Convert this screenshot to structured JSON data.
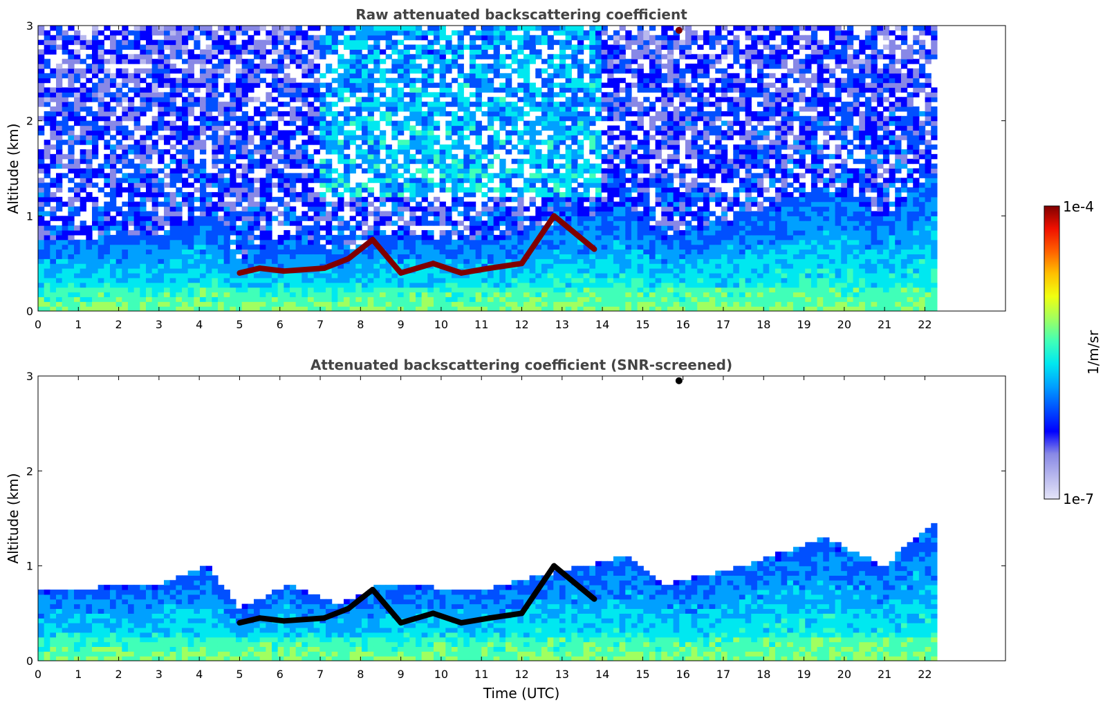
{
  "chart_data": [
    {
      "type": "heatmap",
      "title": "Raw attenuated backscattering coefficient",
      "xlabel": "",
      "ylabel": "Altitude (km)",
      "xlim": [
        0,
        24
      ],
      "ylim": [
        0,
        3
      ],
      "x_ticks": [
        "0",
        "1",
        "2",
        "3",
        "4",
        "5",
        "6",
        "7",
        "8",
        "9",
        "10",
        "11",
        "12",
        "13",
        "14",
        "15",
        "16",
        "17",
        "18",
        "19",
        "20",
        "21",
        "22"
      ],
      "y_ticks": [
        "0",
        "1",
        "2",
        "3"
      ],
      "data_end_time": 22.3,
      "screened": false,
      "cloud_layer": [
        {
          "time": 5.0,
          "altitude_km": 0.4
        },
        {
          "time": 5.5,
          "altitude_km": 0.45
        },
        {
          "time": 6.1,
          "altitude_km": 0.42
        },
        {
          "time": 7.1,
          "altitude_km": 0.45
        },
        {
          "time": 7.7,
          "altitude_km": 0.55
        },
        {
          "time": 8.3,
          "altitude_km": 0.75
        },
        {
          "time": 9.0,
          "altitude_km": 0.4
        },
        {
          "time": 9.8,
          "altitude_km": 0.5
        },
        {
          "time": 10.5,
          "altitude_km": 0.4
        },
        {
          "time": 11.2,
          "altitude_km": 0.45
        },
        {
          "time": 12.0,
          "altitude_km": 0.5
        },
        {
          "time": 12.8,
          "altitude_km": 1.0
        },
        {
          "time": 13.8,
          "altitude_km": 0.65
        },
        {
          "time": 15.9,
          "altitude_km": 2.95
        }
      ],
      "boundary_layer_top": [
        {
          "time": 0,
          "altitude_km": 0.75
        },
        {
          "time": 3,
          "altitude_km": 0.8
        },
        {
          "time": 4.2,
          "altitude_km": 1.0
        },
        {
          "time": 5.0,
          "altitude_km": 0.55
        },
        {
          "time": 6.2,
          "altitude_km": 0.8
        },
        {
          "time": 7.5,
          "altitude_km": 0.6
        },
        {
          "time": 8.5,
          "altitude_km": 0.8
        },
        {
          "time": 11.0,
          "altitude_km": 0.75
        },
        {
          "time": 13.0,
          "altitude_km": 0.95
        },
        {
          "time": 14.6,
          "altitude_km": 1.1
        },
        {
          "time": 15.5,
          "altitude_km": 0.8
        },
        {
          "time": 17.5,
          "altitude_km": 1.0
        },
        {
          "time": 19.5,
          "altitude_km": 1.3
        },
        {
          "time": 21.0,
          "altitude_km": 1.0
        },
        {
          "time": 22.3,
          "altitude_km": 1.5
        }
      ]
    },
    {
      "type": "heatmap",
      "title": "Attenuated backscattering coefficient (SNR-screened)",
      "xlabel": "Time (UTC)",
      "ylabel": "Altitude (km)",
      "xlim": [
        0,
        24
      ],
      "ylim": [
        0,
        3
      ],
      "x_ticks": [
        "0",
        "1",
        "2",
        "3",
        "4",
        "5",
        "6",
        "7",
        "8",
        "9",
        "10",
        "11",
        "12",
        "13",
        "14",
        "15",
        "16",
        "17",
        "18",
        "19",
        "20",
        "21",
        "22"
      ],
      "y_ticks": [
        "0",
        "1",
        "2",
        "3"
      ],
      "data_end_time": 22.3,
      "screened": true,
      "cloud_layer": [
        {
          "time": 5.0,
          "altitude_km": 0.4
        },
        {
          "time": 5.5,
          "altitude_km": 0.45
        },
        {
          "time": 6.1,
          "altitude_km": 0.42
        },
        {
          "time": 7.1,
          "altitude_km": 0.45
        },
        {
          "time": 7.7,
          "altitude_km": 0.55
        },
        {
          "time": 8.3,
          "altitude_km": 0.75
        },
        {
          "time": 9.0,
          "altitude_km": 0.4
        },
        {
          "time": 9.8,
          "altitude_km": 0.5
        },
        {
          "time": 10.5,
          "altitude_km": 0.4
        },
        {
          "time": 11.2,
          "altitude_km": 0.45
        },
        {
          "time": 12.0,
          "altitude_km": 0.5
        },
        {
          "time": 12.8,
          "altitude_km": 1.0
        },
        {
          "time": 13.8,
          "altitude_km": 0.65
        },
        {
          "time": 15.9,
          "altitude_km": 2.95
        }
      ],
      "boundary_layer_top": [
        {
          "time": 0,
          "altitude_km": 0.75
        },
        {
          "time": 3,
          "altitude_km": 0.8
        },
        {
          "time": 4.2,
          "altitude_km": 1.0
        },
        {
          "time": 5.0,
          "altitude_km": 0.55
        },
        {
          "time": 6.2,
          "altitude_km": 0.8
        },
        {
          "time": 7.5,
          "altitude_km": 0.6
        },
        {
          "time": 8.5,
          "altitude_km": 0.8
        },
        {
          "time": 11.0,
          "altitude_km": 0.75
        },
        {
          "time": 13.0,
          "altitude_km": 0.95
        },
        {
          "time": 14.6,
          "altitude_km": 1.1
        },
        {
          "time": 15.5,
          "altitude_km": 0.8
        },
        {
          "time": 17.5,
          "altitude_km": 1.0
        },
        {
          "time": 19.5,
          "altitude_km": 1.3
        },
        {
          "time": 21.0,
          "altitude_km": 1.0
        },
        {
          "time": 22.3,
          "altitude_km": 1.5
        }
      ]
    }
  ],
  "colorbar": {
    "label": "1/m/sr",
    "max_label": "1e-4",
    "min_label": "1e-7",
    "colormap": "jet",
    "scale": "log",
    "colors": [
      "#e4e4f8",
      "#b8b8ee",
      "#8888e6",
      "#0000ff",
      "#0050ff",
      "#00a0ff",
      "#00e8f0",
      "#40ffb8",
      "#a0ff60",
      "#f0ff10",
      "#ffc000",
      "#ff6000",
      "#f01000",
      "#800000"
    ]
  }
}
